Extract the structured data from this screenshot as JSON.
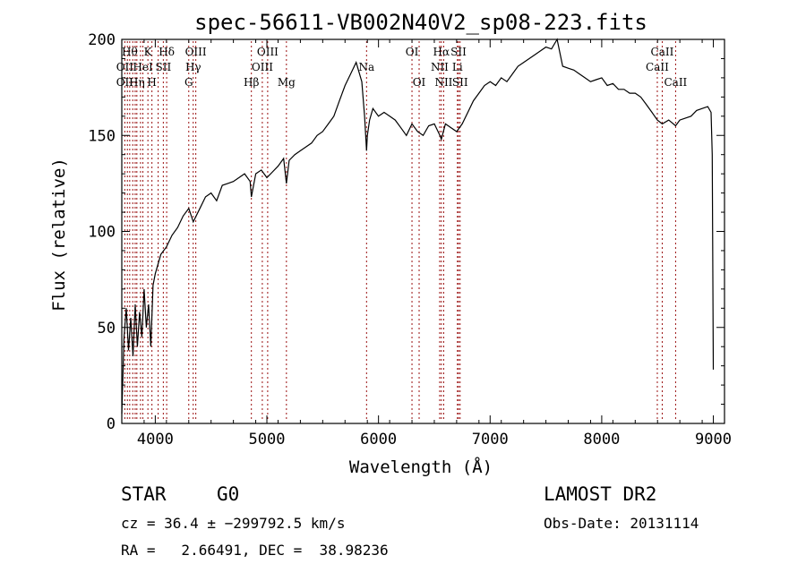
{
  "chart_data": {
    "type": "line",
    "title": "spec-56611-VB002N40V2_sp08-223.fits",
    "xlabel": "Wavelength (Å)",
    "ylabel": "Flux (relative)",
    "xlim": [
      3700,
      9100
    ],
    "ylim": [
      0,
      200
    ],
    "xticks": [
      4000,
      5000,
      6000,
      7000,
      8000,
      9000
    ],
    "yticks": [
      0,
      50,
      100,
      150,
      200
    ],
    "grid": false,
    "legend": "none",
    "series": [
      {
        "x": [
          3700,
          3720,
          3740,
          3760,
          3780,
          3800,
          3820,
          3840,
          3860,
          3880,
          3900,
          3920,
          3940,
          3960,
          3980,
          4000,
          4050,
          4100,
          4150,
          4200,
          4250,
          4300,
          4340,
          4400,
          4450,
          4500,
          4550,
          4600,
          4650,
          4700,
          4750,
          4800,
          4850,
          4861,
          4900,
          4950,
          5000,
          5050,
          5100,
          5150,
          5175,
          5200,
          5250,
          5300,
          5350,
          5400,
          5450,
          5500,
          5550,
          5600,
          5650,
          5700,
          5750,
          5800,
          5850,
          5875,
          5893,
          5900,
          5920,
          5950,
          6000,
          6050,
          6100,
          6150,
          6200,
          6250,
          6300,
          6350,
          6400,
          6450,
          6500,
          6550,
          6563,
          6600,
          6650,
          6700,
          6750,
          6800,
          6850,
          6900,
          6950,
          7000,
          7050,
          7100,
          7150,
          7200,
          7250,
          7300,
          7350,
          7400,
          7450,
          7500,
          7550,
          7600,
          7650,
          7700,
          7750,
          7800,
          7850,
          7900,
          7950,
          8000,
          8050,
          8100,
          8150,
          8200,
          8250,
          8300,
          8350,
          8400,
          8450,
          8498,
          8542,
          8600,
          8662,
          8700,
          8750,
          8800,
          8850,
          8900,
          8950,
          8980,
          8990,
          9000
        ],
        "y": [
          5,
          45,
          60,
          38,
          55,
          35,
          62,
          40,
          58,
          45,
          70,
          50,
          62,
          40,
          72,
          78,
          88,
          92,
          98,
          102,
          108,
          112,
          105,
          112,
          118,
          120,
          116,
          124,
          125,
          126,
          128,
          130,
          126,
          118,
          130,
          132,
          128,
          131,
          134,
          138,
          125,
          137,
          140,
          142,
          144,
          146,
          150,
          152,
          156,
          160,
          168,
          176,
          182,
          188,
          178,
          160,
          142,
          150,
          158,
          164,
          160,
          162,
          160,
          158,
          154,
          150,
          156,
          152,
          150,
          155,
          156,
          150,
          148,
          156,
          154,
          152,
          156,
          162,
          168,
          172,
          176,
          178,
          176,
          180,
          178,
          182,
          186,
          188,
          190,
          192,
          194,
          196,
          195,
          200,
          186,
          185,
          184,
          182,
          180,
          178,
          179,
          180,
          176,
          177,
          174,
          174,
          172,
          172,
          170,
          166,
          162,
          158,
          156,
          158,
          155,
          158,
          159,
          160,
          163,
          164,
          165,
          162,
          140,
          28
        ]
      }
    ],
    "lines": {
      "wavelengths": [
        3727,
        3750,
        3771,
        3798,
        3820,
        3835,
        3868,
        3889,
        3934,
        3970,
        4026,
        4072,
        4102,
        4300,
        4340,
        4363,
        4861,
        4959,
        5007,
        5175,
        5893,
        6300,
        6364,
        6548,
        6563,
        6584,
        6707,
        6717,
        6731,
        8498,
        8542,
        8662
      ],
      "labels": [
        {
          "text": "Hθ",
          "w": 3771,
          "row": 1
        },
        {
          "text": "K",
          "w": 3934,
          "row": 1
        },
        {
          "text": "Hδ",
          "w": 4102,
          "row": 1
        },
        {
          "text": "OIII",
          "w": 4363,
          "row": 1
        },
        {
          "text": "OIII",
          "w": 5007,
          "row": 1
        },
        {
          "text": "OI",
          "w": 6300,
          "row": 1
        },
        {
          "text": "Hα",
          "w": 6563,
          "row": 1
        },
        {
          "text": "SII",
          "w": 6717,
          "row": 1
        },
        {
          "text": "CaII",
          "w": 8542,
          "row": 1
        },
        {
          "text": "OII",
          "w": 3727,
          "row": 2
        },
        {
          "text": "HeI",
          "w": 3889,
          "row": 2
        },
        {
          "text": "SII",
          "w": 4072,
          "row": 2
        },
        {
          "text": "Hγ",
          "w": 4340,
          "row": 2
        },
        {
          "text": "OIII",
          "w": 4959,
          "row": 2
        },
        {
          "text": "Na",
          "w": 5893,
          "row": 2
        },
        {
          "text": "NII",
          "w": 6548,
          "row": 2
        },
        {
          "text": "Li",
          "w": 6707,
          "row": 2
        },
        {
          "text": "CaII",
          "w": 8498,
          "row": 2
        },
        {
          "text": "OII",
          "w": 3727,
          "row": 3
        },
        {
          "text": "Hη",
          "w": 3835,
          "row": 3
        },
        {
          "text": "H",
          "w": 3970,
          "row": 3
        },
        {
          "text": "G",
          "w": 4300,
          "row": 3
        },
        {
          "text": "Hβ",
          "w": 4861,
          "row": 3
        },
        {
          "text": "Mg",
          "w": 5175,
          "row": 3
        },
        {
          "text": "OI",
          "w": 6364,
          "row": 3
        },
        {
          "text": "NII",
          "w": 6584,
          "row": 3
        },
        {
          "text": "SII",
          "w": 6731,
          "row": 3
        },
        {
          "text": "CaII",
          "w": 8662,
          "row": 3
        }
      ]
    }
  },
  "info": {
    "class": "STAR",
    "subclass": "G0",
    "survey": "LAMOST DR2",
    "cz": "cz = 36.4 ± −299792.5 km/s",
    "obs_date": "Obs-Date: 20131114",
    "radec": "RA =   2.66491, DEC =  38.98236"
  },
  "colors": {
    "line_marker": "#9a1010",
    "spectrum": "#000000"
  }
}
